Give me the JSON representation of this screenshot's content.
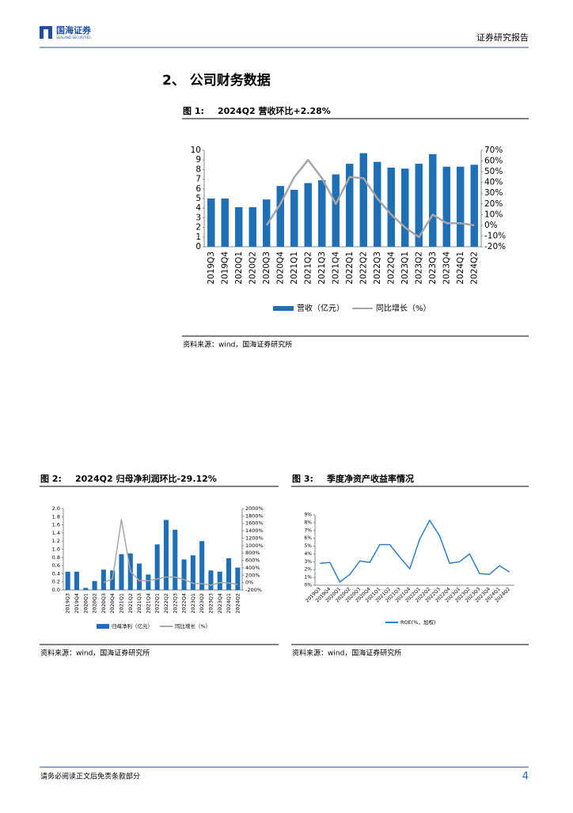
{
  "header": {
    "logo_text": "国海证券",
    "logo_sub": "SEALAND SECURITIES",
    "report_type": "证券研究报告"
  },
  "section_title": "2、 公司财务数据",
  "figures": [
    {
      "label": "图 1:",
      "title": "2024Q2 营收环比+2.28%",
      "source": "资料来源：wind，国海证券研究所",
      "chart_data": {
        "type": "bar",
        "categories": [
          "2019Q3",
          "2019Q4",
          "2020Q1",
          "2020Q2",
          "2020Q3",
          "2020Q4",
          "2021Q1",
          "2021Q2",
          "2021Q3",
          "2021Q4",
          "2022Q1",
          "2022Q2",
          "2022Q3",
          "2022Q4",
          "2023Q1",
          "2023Q2",
          "2023Q3",
          "2023Q4",
          "2024Q1",
          "2024Q2"
        ],
        "series": [
          {
            "name": "营收（亿元）",
            "type": "bar",
            "color": "#1f6fb7",
            "values": [
              5.0,
              5.0,
              4.1,
              4.1,
              4.9,
              6.3,
              5.9,
              6.6,
              6.9,
              7.5,
              8.6,
              9.7,
              8.8,
              8.2,
              8.1,
              8.6,
              9.6,
              8.3,
              8.3,
              8.5
            ]
          },
          {
            "name": "同比增长（%）",
            "type": "line",
            "axis": "y2",
            "color": "#a6a6a6",
            "values": [
              null,
              null,
              null,
              null,
              0,
              20,
              45,
              61,
              44,
              20,
              45,
              44,
              25,
              10,
              -2,
              -11,
              10,
              2,
              2,
              0
            ]
          }
        ],
        "ylim": [
          0,
          10
        ],
        "yticks": [
          0,
          1,
          2,
          3,
          4,
          5,
          6,
          7,
          8,
          9,
          10
        ],
        "y2lim": [
          -20,
          70
        ],
        "y2ticks": [
          {
            "value": 70,
            "label": "70%"
          },
          {
            "value": 60,
            "label": "60%"
          },
          {
            "value": 50,
            "label": "50%"
          },
          {
            "value": 40,
            "label": "40%"
          },
          {
            "value": 30,
            "label": "30%"
          },
          {
            "value": 20,
            "label": "20%"
          },
          {
            "value": 10,
            "label": "10%"
          },
          {
            "value": 0,
            "label": "0%"
          },
          {
            "value": -10,
            "label": "-10%"
          },
          {
            "value": -20,
            "label": "-20%"
          }
        ]
      }
    },
    {
      "label": "图 2:",
      "title": "2024Q2 归母净利润环比-29.12%",
      "source": "资料来源：wind，国海证券研究所",
      "chart_data": {
        "type": "bar",
        "categories": [
          "2019Q3",
          "2019Q4",
          "2020Q1",
          "2020Q2",
          "2020Q3",
          "2020Q4",
          "2021Q1",
          "2021Q2",
          "2021Q3",
          "2021Q4",
          "2022Q1",
          "2022Q2",
          "2022Q3",
          "2022Q4",
          "2023Q1",
          "2023Q2",
          "2023Q3",
          "2023Q4",
          "2024Q1",
          "2024Q2"
        ],
        "series": [
          {
            "name": "归母净利（亿元）",
            "type": "bar",
            "color": "#1f6fb7",
            "values": [
              0.45,
              0.45,
              0.05,
              0.22,
              0.5,
              0.48,
              0.88,
              0.9,
              0.65,
              0.38,
              1.12,
              1.72,
              1.48,
              0.75,
              0.85,
              1.2,
              0.48,
              0.45,
              0.78,
              0.55
            ]
          },
          {
            "name": "同比增长（%）",
            "type": "line",
            "axis": "y2",
            "color": "#a6a6a6",
            "values": [
              null,
              null,
              null,
              null,
              0,
              100,
              1700,
              300,
              50,
              50,
              100,
              150,
              150,
              80,
              -20,
              -30,
              -70,
              0,
              -10,
              -50
            ]
          }
        ],
        "ylim": [
          0,
          2
        ],
        "yticks": [
          {
            "value": 0,
            "label": "0.0"
          },
          0.2,
          0.4,
          0.6,
          0.8,
          {
            "value": 1,
            "label": "1.0"
          },
          1.2,
          1.4,
          1.6,
          1.8,
          {
            "value": 2,
            "label": "2.0"
          }
        ],
        "y2lim": [
          -200,
          2000
        ],
        "y2ticks": [
          {
            "value": 2000,
            "label": "2000%"
          },
          {
            "value": 1800,
            "label": "1800%"
          },
          {
            "value": 1600,
            "label": "1600%"
          },
          {
            "value": 1400,
            "label": "1400%"
          },
          {
            "value": 1200,
            "label": "1200%"
          },
          {
            "value": 1000,
            "label": "1000%"
          },
          {
            "value": 800,
            "label": "800%"
          },
          {
            "value": 600,
            "label": "600%"
          },
          {
            "value": 400,
            "label": "400%"
          },
          {
            "value": 200,
            "label": "200%"
          },
          {
            "value": 0,
            "label": "0%"
          },
          {
            "value": -200,
            "label": "-200%"
          }
        ]
      }
    },
    {
      "label": "图 3:",
      "title": "季度净资产收益率情况",
      "source": "资料来源：wind，国海证券研究所",
      "chart_data": {
        "type": "line",
        "categories": [
          "2019Q3",
          "2019Q4",
          "2020Q1",
          "2020Q2",
          "2020Q3",
          "2020Q4",
          "2021Q1",
          "2021Q2",
          "2021Q3",
          "2021Q4",
          "2022Q1",
          "2022Q2",
          "2022Q3",
          "2022Q4",
          "2023Q1",
          "2023Q2",
          "2023Q3",
          "2023Q4",
          "2024Q1",
          "2024Q2"
        ],
        "series": [
          {
            "name": "ROE(%，加权)",
            "type": "line",
            "color": "#2e7fc2",
            "values": [
              2.8,
              2.9,
              0.4,
              1.4,
              3.1,
              2.9,
              5.2,
              5.2,
              3.6,
              2.1,
              5.9,
              8.3,
              6.3,
              2.8,
              3.0,
              4.0,
              1.5,
              1.4,
              2.5,
              1.7
            ]
          }
        ],
        "ylim": [
          0,
          9
        ],
        "yticks": [
          {
            "value": 0,
            "label": "0%"
          },
          {
            "value": 1,
            "label": "1%"
          },
          {
            "value": 2,
            "label": "2%"
          },
          {
            "value": 3,
            "label": "3%"
          },
          {
            "value": 4,
            "label": "4%"
          },
          {
            "value": 5,
            "label": "5%"
          },
          {
            "value": 6,
            "label": "6%"
          },
          {
            "value": 7,
            "label": "7%"
          },
          {
            "value": 8,
            "label": "8%"
          },
          {
            "value": 9,
            "label": "9%"
          }
        ]
      }
    }
  ],
  "footer": {
    "disclaimer": "请务必阅读正文后免责条款部分",
    "page": "4"
  }
}
